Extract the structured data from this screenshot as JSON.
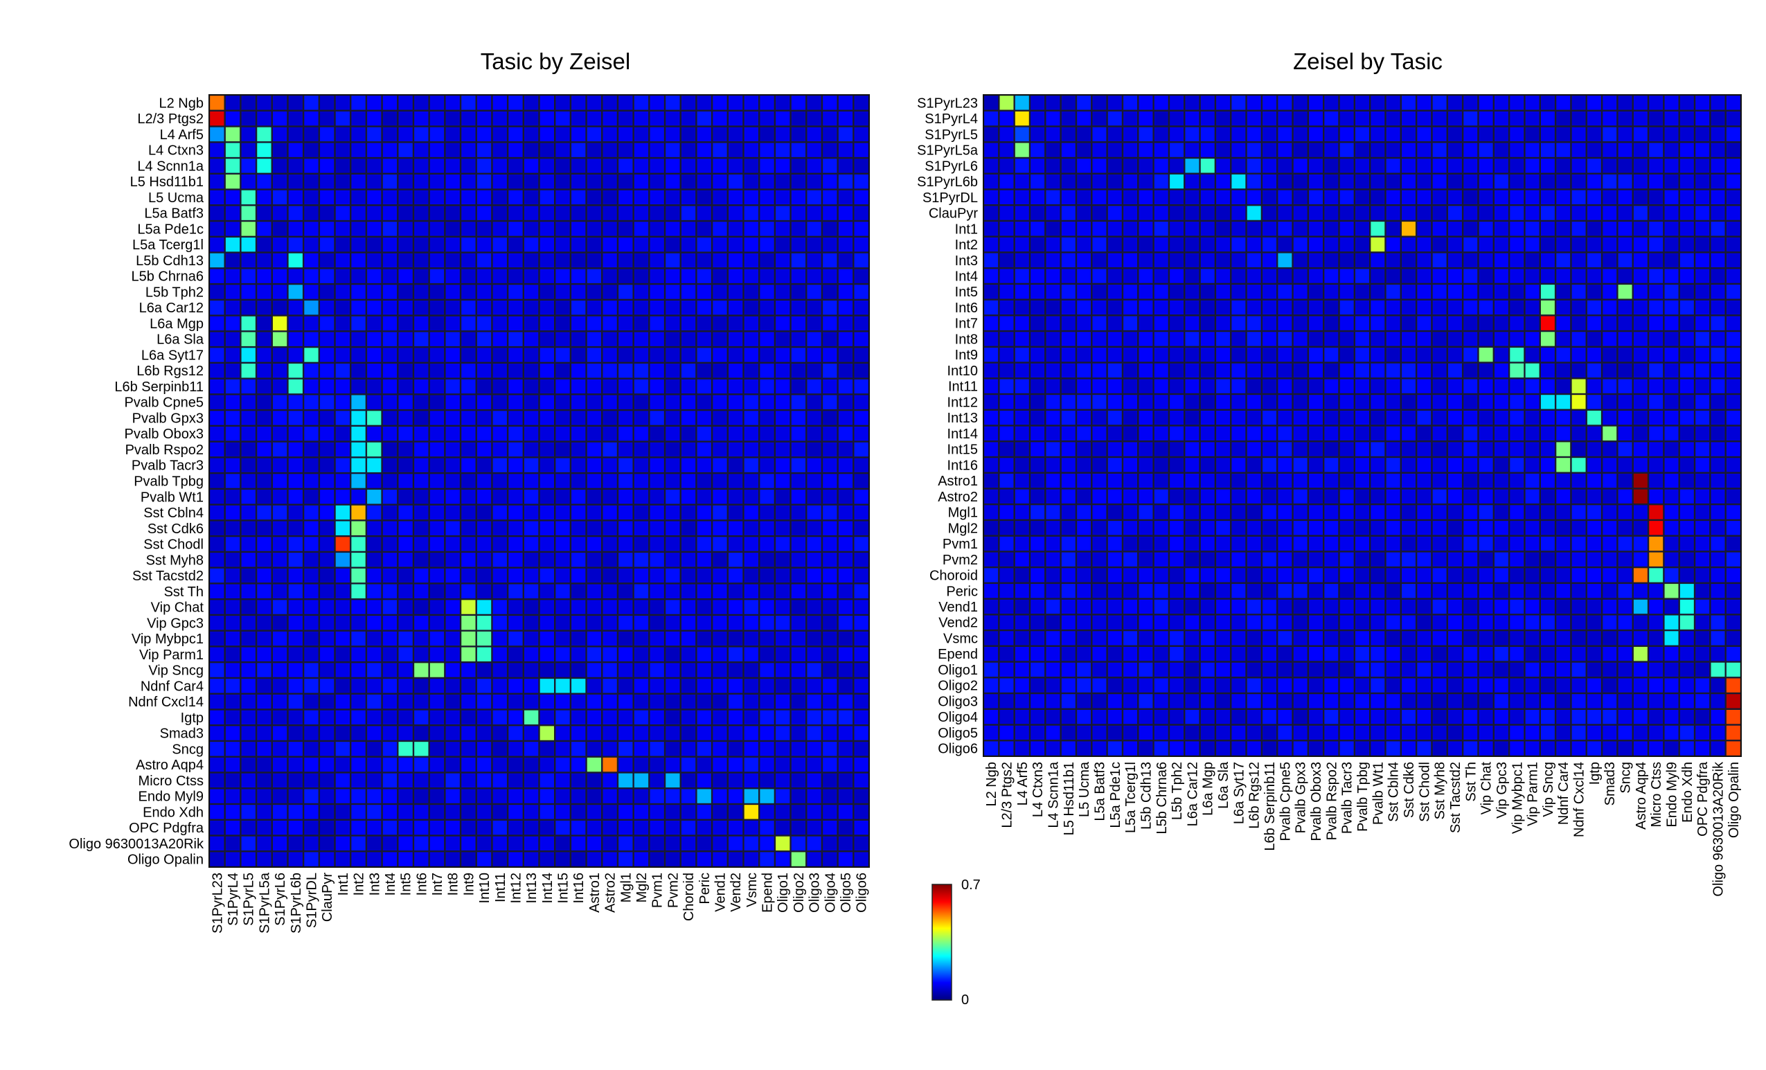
{
  "colors": {
    "cell_border": "#1a1a2e",
    "colormap": [
      "#000080",
      "#0000ff",
      "#00ffff",
      "#ffff00",
      "#ff0000",
      "#800000"
    ]
  },
  "colorbar": {
    "min_label": "0",
    "max_label": "0.7",
    "min": 0,
    "max": 0.7
  },
  "chart_data": [
    {
      "type": "heatmap",
      "title": "Tasic by Zeisel",
      "rows": [
        "L2 Ngb",
        "L2/3 Ptgs2",
        "L4 Arf5",
        "L4 Ctxn3",
        "L4 Scnn1a",
        "L5 Hsd11b1",
        "L5 Ucma",
        "L5a Batf3",
        "L5a Pde1c",
        "L5a Tcerg1l",
        "L5b Cdh13",
        "L5b Chrna6",
        "L5b Tph2",
        "L6a Car12",
        "L6a Mgp",
        "L6a Sla",
        "L6a Syt17",
        "L6b Rgs12",
        "L6b Serpinb11",
        "Pvalb Cpne5",
        "Pvalb Gpx3",
        "Pvalb Obox3",
        "Pvalb Rspo2",
        "Pvalb Tacr3",
        "Pvalb Tpbg",
        "Pvalb Wt1",
        "Sst Cbln4",
        "Sst Cdk6",
        "Sst Chodl",
        "Sst Myh8",
        "Sst Tacstd2",
        "Sst Th",
        "Vip Chat",
        "Vip Gpc3",
        "Vip Mybpc1",
        "Vip Parm1",
        "Vip Sncg",
        "Ndnf Car4",
        "Ndnf Cxcl14",
        "Igtp",
        "Smad3",
        "Sncg",
        "Astro Aqp4",
        "Micro Ctss",
        "Endo Myl9",
        "Endo Xdh",
        "OPC Pdgfra",
        "Oligo 9630013A20Rik",
        "Oligo Opalin"
      ],
      "columns": [
        "S1PyrL23",
        "S1PyrL4",
        "S1PyrL5",
        "S1PyrL5a",
        "S1PyrL6",
        "S1PyrL6b",
        "S1PyrDL",
        "ClauPyr",
        "Int1",
        "Int2",
        "Int3",
        "Int4",
        "Int5",
        "Int6",
        "Int7",
        "Int8",
        "Int9",
        "Int10",
        "Int11",
        "Int12",
        "Int13",
        "Int14",
        "Int15",
        "Int16",
        "Astro1",
        "Astro2",
        "Mgl1",
        "Mgl2",
        "Pvm1",
        "Pvm2",
        "Choroid",
        "Peric",
        "Vend1",
        "Vend2",
        "Vsmc",
        "Epend",
        "Oligo1",
        "Oligo2",
        "Oligo3",
        "Oligo4",
        "Oligo5",
        "Oligo6"
      ],
      "range": [
        0,
        0.7
      ],
      "background": 0.05,
      "highlights": [
        [
          0,
          0,
          0.52
        ],
        [
          1,
          0,
          0.62
        ],
        [
          2,
          0,
          0.2
        ],
        [
          2,
          1,
          0.35
        ],
        [
          2,
          3,
          0.3
        ],
        [
          3,
          1,
          0.3
        ],
        [
          3,
          3,
          0.28
        ],
        [
          4,
          1,
          0.3
        ],
        [
          4,
          3,
          0.28
        ],
        [
          5,
          1,
          0.35
        ],
        [
          6,
          2,
          0.3
        ],
        [
          7,
          2,
          0.32
        ],
        [
          8,
          2,
          0.35
        ],
        [
          9,
          1,
          0.25
        ],
        [
          9,
          2,
          0.25
        ],
        [
          10,
          0,
          0.22
        ],
        [
          10,
          5,
          0.28
        ],
        [
          12,
          5,
          0.22
        ],
        [
          13,
          6,
          0.2
        ],
        [
          14,
          2,
          0.3
        ],
        [
          14,
          4,
          0.42
        ],
        [
          15,
          2,
          0.32
        ],
        [
          15,
          4,
          0.35
        ],
        [
          16,
          2,
          0.25
        ],
        [
          16,
          6,
          0.3
        ],
        [
          17,
          2,
          0.3
        ],
        [
          17,
          5,
          0.3
        ],
        [
          18,
          5,
          0.3
        ],
        [
          19,
          9,
          0.22
        ],
        [
          20,
          9,
          0.25
        ],
        [
          20,
          10,
          0.3
        ],
        [
          21,
          9,
          0.25
        ],
        [
          22,
          9,
          0.25
        ],
        [
          22,
          10,
          0.3
        ],
        [
          23,
          9,
          0.25
        ],
        [
          23,
          10,
          0.25
        ],
        [
          24,
          9,
          0.22
        ],
        [
          25,
          10,
          0.22
        ],
        [
          26,
          8,
          0.25
        ],
        [
          26,
          9,
          0.48
        ],
        [
          27,
          8,
          0.25
        ],
        [
          27,
          9,
          0.35
        ],
        [
          28,
          8,
          0.56
        ],
        [
          28,
          9,
          0.3
        ],
        [
          29,
          8,
          0.2
        ],
        [
          29,
          9,
          0.3
        ],
        [
          30,
          9,
          0.32
        ],
        [
          31,
          9,
          0.3
        ],
        [
          32,
          16,
          0.4
        ],
        [
          32,
          17,
          0.25
        ],
        [
          33,
          16,
          0.35
        ],
        [
          33,
          17,
          0.3
        ],
        [
          34,
          16,
          0.35
        ],
        [
          34,
          17,
          0.32
        ],
        [
          35,
          16,
          0.35
        ],
        [
          35,
          17,
          0.3
        ],
        [
          36,
          13,
          0.35
        ],
        [
          36,
          14,
          0.35
        ],
        [
          37,
          21,
          0.25
        ],
        [
          37,
          22,
          0.25
        ],
        [
          37,
          23,
          0.25
        ],
        [
          39,
          20,
          0.32
        ],
        [
          40,
          21,
          0.38
        ],
        [
          41,
          12,
          0.3
        ],
        [
          41,
          13,
          0.3
        ],
        [
          42,
          24,
          0.35
        ],
        [
          42,
          25,
          0.52
        ],
        [
          43,
          26,
          0.22
        ],
        [
          43,
          27,
          0.22
        ],
        [
          43,
          29,
          0.22
        ],
        [
          44,
          31,
          0.22
        ],
        [
          44,
          34,
          0.22
        ],
        [
          44,
          35,
          0.22
        ],
        [
          45,
          34,
          0.45
        ],
        [
          47,
          36,
          0.4
        ],
        [
          48,
          37,
          0.35
        ]
      ]
    },
    {
      "type": "heatmap",
      "title": "Zeisel by Tasic",
      "rows": [
        "S1PyrL23",
        "S1PyrL4",
        "S1PyrL5",
        "S1PyrL5a",
        "S1PyrL6",
        "S1PyrL6b",
        "S1PyrDL",
        "ClauPyr",
        "Int1",
        "Int2",
        "Int3",
        "Int4",
        "Int5",
        "Int6",
        "Int7",
        "Int8",
        "Int9",
        "Int10",
        "Int11",
        "Int12",
        "Int13",
        "Int14",
        "Int15",
        "Int16",
        "Astro1",
        "Astro2",
        "Mgl1",
        "Mgl2",
        "Pvm1",
        "Pvm2",
        "Choroid",
        "Peric",
        "Vend1",
        "Vend2",
        "Vsmc",
        "Epend",
        "Oligo1",
        "Oligo2",
        "Oligo3",
        "Oligo4",
        "Oligo5",
        "Oligo6"
      ],
      "columns": [
        "L2 Ngb",
        "L2/3 Ptgs2",
        "L4 Arf5",
        "L4 Ctxn3",
        "L4 Scnn1a",
        "L5 Hsd11b1",
        "L5 Ucma",
        "L5a Batf3",
        "L5a Pde1c",
        "L5a Tcerg1l",
        "L5b Cdh13",
        "L5b Chrna6",
        "L5b Tph2",
        "L6a Car12",
        "L6a Mgp",
        "L6a Sla",
        "L6a Syt17",
        "L6b Rgs12",
        "L6b Serpinb11",
        "Pvalb Cpne5",
        "Pvalb Gpx3",
        "Pvalb Obox3",
        "Pvalb Rspo2",
        "Pvalb Tacr3",
        "Pvalb Tpbg",
        "Pvalb Wt1",
        "Sst Cbln4",
        "Sst Cdk6",
        "Sst Chodl",
        "Sst Myh8",
        "Sst Tacstd2",
        "Sst Th",
        "Vip Chat",
        "Vip Gpc3",
        "Vip Mybpc1",
        "Vip Parm1",
        "Vip Sncg",
        "Ndnf Car4",
        "Ndnf Cxcl14",
        "Igtp",
        "Smad3",
        "Sncg",
        "Astro Aqp4",
        "Micro Ctss",
        "Endo Myl9",
        "Endo Xdh",
        "OPC Pdgfra",
        "Oligo 9630013A20Rik",
        "Oligo Opalin"
      ],
      "range": [
        0,
        0.7
      ],
      "background": 0.05,
      "highlights": [
        [
          0,
          1,
          0.38
        ],
        [
          0,
          2,
          0.22
        ],
        [
          1,
          2,
          0.45
        ],
        [
          2,
          2,
          0.15
        ],
        [
          3,
          2,
          0.35
        ],
        [
          4,
          13,
          0.22
        ],
        [
          4,
          14,
          0.3
        ],
        [
          5,
          12,
          0.25
        ],
        [
          5,
          16,
          0.25
        ],
        [
          7,
          17,
          0.25
        ],
        [
          8,
          25,
          0.3
        ],
        [
          8,
          27,
          0.48
        ],
        [
          9,
          25,
          0.4
        ],
        [
          10,
          19,
          0.22
        ],
        [
          12,
          36,
          0.3
        ],
        [
          12,
          41,
          0.35
        ],
        [
          13,
          36,
          0.35
        ],
        [
          14,
          36,
          0.6
        ],
        [
          15,
          36,
          0.35
        ],
        [
          16,
          32,
          0.35
        ],
        [
          16,
          34,
          0.3
        ],
        [
          17,
          34,
          0.32
        ],
        [
          17,
          35,
          0.3
        ],
        [
          18,
          38,
          0.4
        ],
        [
          19,
          36,
          0.25
        ],
        [
          19,
          37,
          0.25
        ],
        [
          19,
          38,
          0.42
        ],
        [
          20,
          39,
          0.3
        ],
        [
          21,
          40,
          0.35
        ],
        [
          22,
          37,
          0.35
        ],
        [
          23,
          37,
          0.35
        ],
        [
          23,
          38,
          0.3
        ],
        [
          24,
          42,
          0.68
        ],
        [
          25,
          42,
          0.68
        ],
        [
          26,
          43,
          0.62
        ],
        [
          27,
          43,
          0.6
        ],
        [
          28,
          43,
          0.5
        ],
        [
          29,
          43,
          0.5
        ],
        [
          30,
          42,
          0.52
        ],
        [
          30,
          43,
          0.3
        ],
        [
          31,
          44,
          0.35
        ],
        [
          31,
          45,
          0.25
        ],
        [
          32,
          42,
          0.22
        ],
        [
          32,
          45,
          0.28
        ],
        [
          33,
          44,
          0.25
        ],
        [
          33,
          45,
          0.3
        ],
        [
          34,
          44,
          0.25
        ],
        [
          35,
          42,
          0.38
        ],
        [
          36,
          47,
          0.3
        ],
        [
          36,
          48,
          0.3
        ],
        [
          37,
          48,
          0.55
        ],
        [
          38,
          48,
          0.65
        ],
        [
          39,
          48,
          0.55
        ],
        [
          40,
          48,
          0.55
        ],
        [
          41,
          48,
          0.55
        ]
      ]
    }
  ]
}
